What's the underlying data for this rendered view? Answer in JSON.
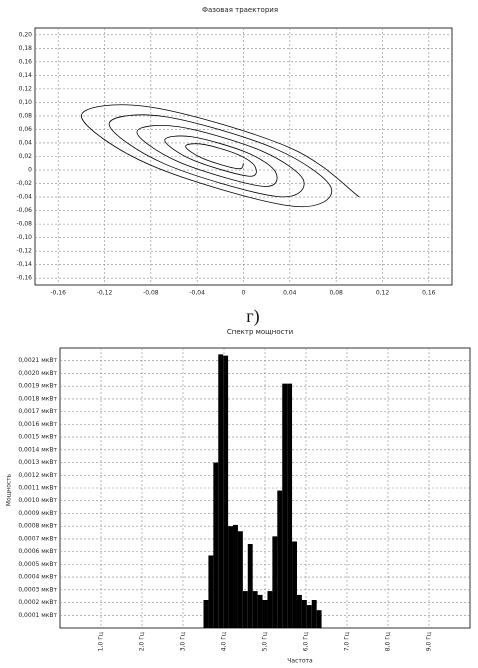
{
  "label": "г)",
  "chart_data": [
    {
      "type": "line",
      "title": "Фазовая траектория",
      "color": "#000000",
      "grid": true,
      "x": [
        0.1,
        0.04,
        -0.08,
        -0.14,
        -0.08,
        0.04,
        0.076,
        0.028,
        -0.068,
        -0.116,
        -0.068,
        0.028,
        0.052,
        0.016,
        -0.056,
        -0.092,
        -0.056,
        0.016,
        0.028,
        0.004,
        -0.044,
        -0.068,
        -0.044,
        0.004,
        0.01,
        -0.005,
        -0.035,
        -0.05,
        -0.035,
        -0.005,
        0.0
      ],
      "values": [
        -0.04,
        0.033,
        0.093,
        0.08,
        0.007,
        -0.053,
        -0.028,
        0.031,
        0.079,
        0.068,
        0.009,
        -0.039,
        -0.016,
        0.028,
        0.064,
        0.056,
        0.012,
        -0.024,
        -0.004,
        0.025,
        0.049,
        0.044,
        0.015,
        -0.009,
        0.005,
        0.023,
        0.038,
        0.035,
        0.017,
        0.002,
        0.01
      ],
      "xlim": [
        -0.18,
        0.18
      ],
      "xticks": [
        {
          "value": -0.16,
          "label": "-0,16"
        },
        {
          "value": -0.12,
          "label": "-0,12"
        },
        {
          "value": -0.08,
          "label": "-0,08"
        },
        {
          "value": -0.04,
          "label": "-0,04"
        },
        0,
        {
          "value": 0.04,
          "label": "0,04"
        },
        {
          "value": 0.08,
          "label": "0,08"
        },
        {
          "value": 0.12,
          "label": "0,12"
        },
        {
          "value": 0.16,
          "label": "0,16"
        }
      ],
      "ylim": [
        -0.17,
        0.21
      ],
      "yticks": [
        {
          "value": -0.16,
          "label": "-0,16"
        },
        {
          "value": -0.14,
          "label": "-0,14"
        },
        {
          "value": -0.12,
          "label": "-0,12"
        },
        {
          "value": -0.1,
          "label": "-0,10"
        },
        {
          "value": -0.08,
          "label": "-0,08"
        },
        {
          "value": -0.06,
          "label": "-0,06"
        },
        {
          "value": -0.04,
          "label": "-0,04"
        },
        {
          "value": -0.02,
          "label": "-0,02"
        },
        0,
        {
          "value": 0.02,
          "label": "0,02"
        },
        {
          "value": 0.04,
          "label": "0,04"
        },
        {
          "value": 0.06,
          "label": "0,06"
        },
        {
          "value": 0.08,
          "label": "0,08"
        },
        {
          "value": 0.1,
          "label": "0,10"
        },
        {
          "value": 0.12,
          "label": "0,12"
        },
        {
          "value": 0.14,
          "label": "0,14"
        },
        {
          "value": 0.16,
          "label": "0,16"
        },
        {
          "value": 0.18,
          "label": "0,18"
        },
        {
          "value": 0.2,
          "label": "0,20"
        }
      ]
    },
    {
      "type": "histogram",
      "title": "Спектр мощности",
      "x_label": "Частота",
      "y_label": "Мощность",
      "color": "#000000",
      "grid": true,
      "bins": [
        3.5,
        3.62,
        3.74,
        3.86,
        3.98,
        4.1,
        4.22,
        4.34,
        4.46,
        4.58,
        4.7,
        4.82,
        4.94,
        5.06,
        5.18,
        5.3,
        5.42,
        5.54,
        5.66,
        5.78,
        5.9,
        6.02,
        6.14,
        6.26,
        6.38
      ],
      "values": [
        0.00022,
        0.00057,
        0.0013,
        0.00215,
        0.00214,
        0.0008,
        0.00081,
        0.00076,
        0.00029,
        0.00066,
        0.00029,
        0.00026,
        0.00022,
        0.00029,
        0.00072,
        0.00108,
        0.00192,
        0.00192,
        0.00068,
        0.00026,
        0.00022,
        0.00018,
        0.00022,
        0.00014
      ],
      "xlim": [
        0,
        10
      ],
      "xticks": [
        {
          "value": 1,
          "label": "1,0 Гц"
        },
        {
          "value": 2,
          "label": "2,0 Гц"
        },
        {
          "value": 3,
          "label": "3,0 Гц"
        },
        {
          "value": 4,
          "label": "4,0 Гц"
        },
        {
          "value": 5,
          "label": "5,0 Гц"
        },
        {
          "value": 6,
          "label": "6,0 Гц"
        },
        {
          "value": 7,
          "label": "7,0 Гц"
        },
        {
          "value": 8,
          "label": "8,0 Гц"
        },
        {
          "value": 9,
          "label": "9,0 Гц"
        }
      ],
      "ylim": [
        0,
        0.0022
      ],
      "yticks": [
        {
          "value": 0.0001,
          "label": "0,0001 мкВт"
        },
        {
          "value": 0.0002,
          "label": "0,0002 мкВт"
        },
        {
          "value": 0.0003,
          "label": "0,0003 мкВт"
        },
        {
          "value": 0.0004,
          "label": "0,0004 мкВт"
        },
        {
          "value": 0.0005,
          "label": "0,0005 мкВт"
        },
        {
          "value": 0.0006,
          "label": "0,0006 мкВт"
        },
        {
          "value": 0.0007,
          "label": "0,0007 мкВт"
        },
        {
          "value": 0.0008,
          "label": "0,0008 мкВт"
        },
        {
          "value": 0.0009,
          "label": "0,0009 мкВт"
        },
        {
          "value": 0.001,
          "label": "0,0010 мкВт"
        },
        {
          "value": 0.0011,
          "label": "0,0011 мкВт"
        },
        {
          "value": 0.0012,
          "label": "0,0012 мкВт"
        },
        {
          "value": 0.0013,
          "label": "0,0013 мкВт"
        },
        {
          "value": 0.0014,
          "label": "0,0014 мкВт"
        },
        {
          "value": 0.0015,
          "label": "0,0015 мкВт"
        },
        {
          "value": 0.0016,
          "label": "0,0016 мкВт"
        },
        {
          "value": 0.0017,
          "label": "0,0017 мкВт"
        },
        {
          "value": 0.0018,
          "label": "0,0018 мкВт"
        },
        {
          "value": 0.0019,
          "label": "0,0019 мкВт"
        },
        {
          "value": 0.002,
          "label": "0,0020 мкВт"
        },
        {
          "value": 0.0021,
          "label": "0,0021 мкВт"
        }
      ]
    }
  ]
}
